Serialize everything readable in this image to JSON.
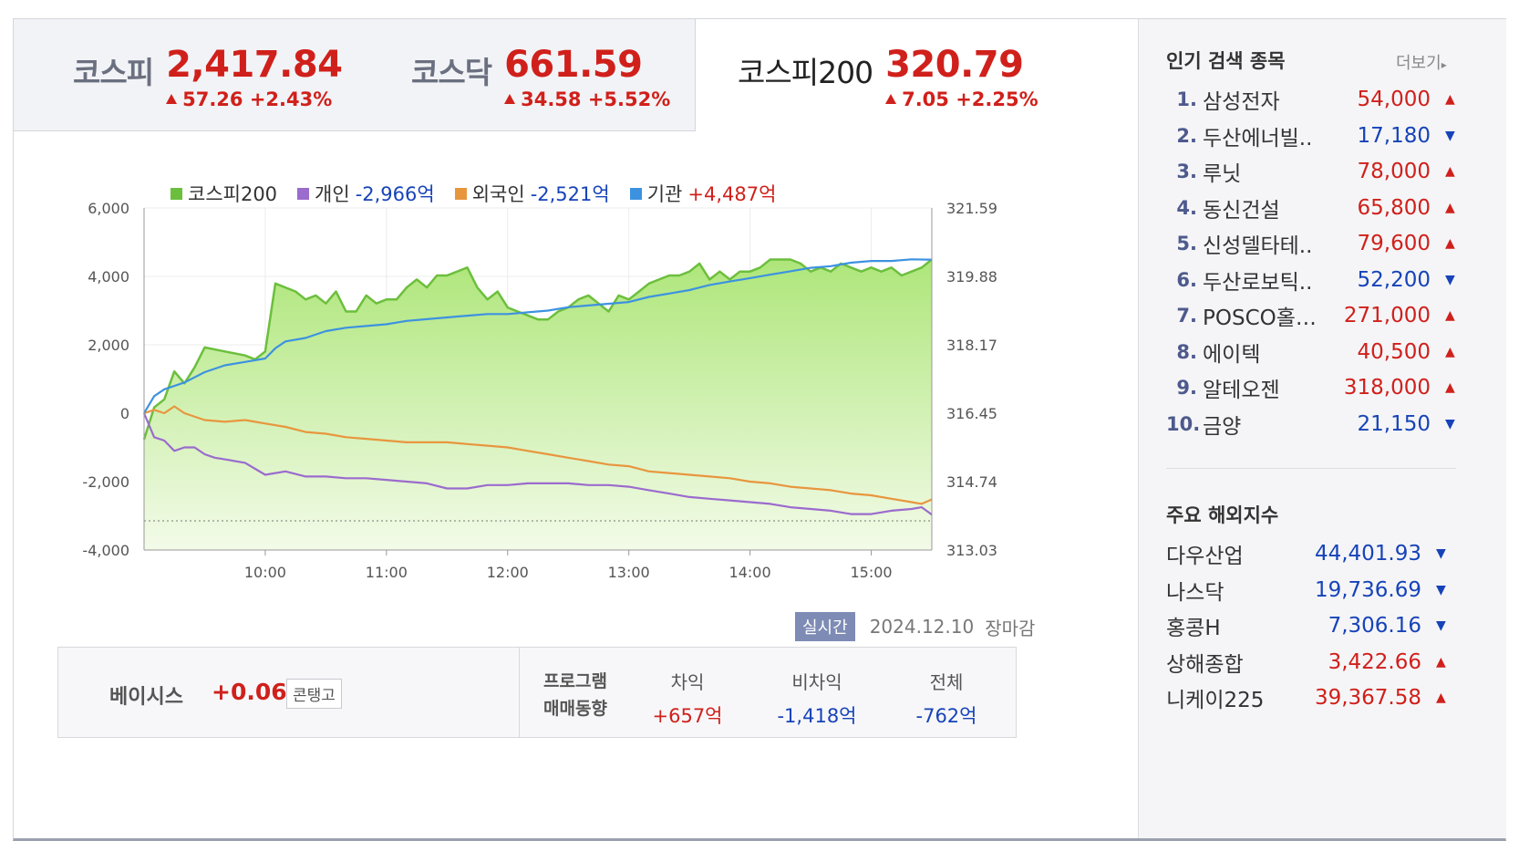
{
  "indices": [
    {
      "name": "코스피",
      "value": "2,417.84",
      "change": "57.26 +2.43%"
    },
    {
      "name": "코스닥",
      "value": "661.59",
      "change": "34.58 +5.52%"
    },
    {
      "name": "코스피200",
      "value": "320.79",
      "change": "7.05 +2.25%"
    }
  ],
  "legend": [
    {
      "name": "코스피200",
      "value": "",
      "color": "#6cbf3d"
    },
    {
      "name": "개인",
      "value": "-2,966억",
      "color": "#9b6bce",
      "sign": "neg"
    },
    {
      "name": "외국인",
      "value": "-2,521억",
      "color": "#e8963e",
      "sign": "neg"
    },
    {
      "name": "기관",
      "value": "+4,487억",
      "color": "#3d92e0",
      "sign": "pos"
    }
  ],
  "realtime": {
    "badge": "실시간",
    "date": "2024.12.10",
    "status": "장마감"
  },
  "basis": {
    "label": "베이시스",
    "value": "+0.06",
    "button": "콘탱고"
  },
  "program": {
    "label": "프로그램\n매매동향",
    "columns": [
      {
        "head": "차익",
        "value": "+657억",
        "sign": "pos"
      },
      {
        "head": "비차익",
        "value": "-1,418억",
        "sign": "neg"
      },
      {
        "head": "전체",
        "value": "-762억",
        "sign": "neg"
      }
    ]
  },
  "popular": {
    "title": "인기 검색 종목",
    "more": "더보기",
    "items": [
      {
        "rank": "1.",
        "name": "삼성전자",
        "price": "54,000",
        "dir": "up"
      },
      {
        "rank": "2.",
        "name": "두산에너빌..",
        "price": "17,180",
        "dir": "down"
      },
      {
        "rank": "3.",
        "name": "루닛",
        "price": "78,000",
        "dir": "up"
      },
      {
        "rank": "4.",
        "name": "동신건설",
        "price": "65,800",
        "dir": "up"
      },
      {
        "rank": "5.",
        "name": "신성델타테..",
        "price": "79,600",
        "dir": "up"
      },
      {
        "rank": "6.",
        "name": "두산로보틱..",
        "price": "52,200",
        "dir": "down"
      },
      {
        "rank": "7.",
        "name": "POSCO홀…",
        "price": "271,000",
        "dir": "up"
      },
      {
        "rank": "8.",
        "name": "에이텍",
        "price": "40,500",
        "dir": "up"
      },
      {
        "rank": "9.",
        "name": "알테오젠",
        "price": "318,000",
        "dir": "up"
      },
      {
        "rank": "10.",
        "name": "금양",
        "price": "21,150",
        "dir": "down"
      }
    ]
  },
  "overseas": {
    "title": "주요 해외지수",
    "items": [
      {
        "name": "다우산업",
        "value": "44,401.93",
        "dir": "down"
      },
      {
        "name": "나스닥",
        "value": "19,736.69",
        "dir": "down"
      },
      {
        "name": "홍콩H",
        "value": "7,306.16",
        "dir": "down"
      },
      {
        "name": "상해종합",
        "value": "3,422.66",
        "dir": "up"
      },
      {
        "name": "니케이225",
        "value": "39,367.58",
        "dir": "up"
      }
    ]
  },
  "colors": {
    "up": "#d0201b",
    "down": "#1643b8"
  },
  "chart_data": {
    "type": "line",
    "x_ticks": [
      "10:00",
      "11:00",
      "12:00",
      "13:00",
      "14:00",
      "15:00"
    ],
    "y_left_ticks": [
      "6,000",
      "4,000",
      "2,000",
      "0",
      "-2,000",
      "-4,000"
    ],
    "y_right_ticks": [
      "321.59",
      "319.88",
      "318.17",
      "316.45",
      "314.74",
      "313.03"
    ],
    "ylim_left": [
      -4000,
      6000
    ],
    "ylim_right": [
      313.03,
      321.59
    ],
    "x_range": [
      "09:00",
      "15:30"
    ],
    "series": [
      {
        "name": "코스피200",
        "axis": "right",
        "color": "#6cbf3d",
        "x": [
          "09:00",
          "09:05",
          "09:10",
          "09:15",
          "09:20",
          "09:25",
          "09:30",
          "09:40",
          "09:50",
          "09:55",
          "10:00",
          "10:05",
          "10:15",
          "10:20",
          "10:25",
          "10:30",
          "10:35",
          "10:40",
          "10:45",
          "10:50",
          "10:55",
          "11:00",
          "11:05",
          "11:10",
          "11:15",
          "11:20",
          "11:25",
          "11:30",
          "11:35",
          "11:40",
          "11:45",
          "11:50",
          "11:55",
          "12:00",
          "12:05",
          "12:10",
          "12:15",
          "12:20",
          "12:25",
          "12:30",
          "12:35",
          "12:40",
          "12:45",
          "12:50",
          "12:55",
          "13:00",
          "13:05",
          "13:10",
          "13:15",
          "13:20",
          "13:25",
          "13:30",
          "13:35",
          "13:40",
          "13:45",
          "13:50",
          "13:55",
          "14:00",
          "14:05",
          "14:10",
          "14:15",
          "14:20",
          "14:25",
          "14:30",
          "14:35",
          "14:40",
          "14:45",
          "14:50",
          "14:55",
          "15:00",
          "15:05",
          "15:10",
          "15:15",
          "15:20",
          "15:25",
          "15:30"
        ],
        "values": [
          315.8,
          316.6,
          316.8,
          317.5,
          317.2,
          317.6,
          318.1,
          318.0,
          317.9,
          317.8,
          318.0,
          319.7,
          319.5,
          319.3,
          319.4,
          319.2,
          319.5,
          319.0,
          319.0,
          319.4,
          319.2,
          319.3,
          319.3,
          319.6,
          319.8,
          319.6,
          319.9,
          319.9,
          320.0,
          320.1,
          319.6,
          319.3,
          319.5,
          319.1,
          319.0,
          318.9,
          318.8,
          318.8,
          319.0,
          319.1,
          319.3,
          319.4,
          319.2,
          319.0,
          319.4,
          319.3,
          319.5,
          319.7,
          319.8,
          319.9,
          319.9,
          320.0,
          320.2,
          319.8,
          320.0,
          319.8,
          320.0,
          320.0,
          320.1,
          320.3,
          320.3,
          320.3,
          320.2,
          320.0,
          320.1,
          320.0,
          320.2,
          320.1,
          320.0,
          320.1,
          320.0,
          320.1,
          319.9,
          320.0,
          320.1,
          320.3
        ]
      },
      {
        "name": "개인",
        "axis": "left",
        "color": "#9b6bce",
        "x": [
          "09:00",
          "09:05",
          "09:10",
          "09:15",
          "09:20",
          "09:25",
          "09:30",
          "09:35",
          "09:40",
          "09:50",
          "10:00",
          "10:10",
          "10:20",
          "10:30",
          "10:40",
          "10:50",
          "11:00",
          "11:10",
          "11:20",
          "11:30",
          "11:40",
          "11:50",
          "12:00",
          "12:10",
          "12:20",
          "12:30",
          "12:40",
          "12:50",
          "13:00",
          "13:10",
          "13:20",
          "13:30",
          "13:40",
          "13:50",
          "14:00",
          "14:10",
          "14:20",
          "14:30",
          "14:40",
          "14:50",
          "15:00",
          "15:10",
          "15:20",
          "15:25",
          "15:30"
        ],
        "values": [
          0,
          -700,
          -800,
          -1100,
          -1000,
          -1000,
          -1200,
          -1300,
          -1350,
          -1450,
          -1800,
          -1700,
          -1850,
          -1850,
          -1900,
          -1900,
          -1950,
          -2000,
          -2050,
          -2200,
          -2200,
          -2100,
          -2100,
          -2050,
          -2050,
          -2050,
          -2100,
          -2100,
          -2150,
          -2250,
          -2350,
          -2450,
          -2500,
          -2550,
          -2600,
          -2650,
          -2750,
          -2800,
          -2850,
          -2950,
          -2950,
          -2850,
          -2800,
          -2750,
          -2966
        ]
      },
      {
        "name": "외국인",
        "axis": "left",
        "color": "#e8963e",
        "x": [
          "09:00",
          "09:05",
          "09:10",
          "09:15",
          "09:20",
          "09:30",
          "09:40",
          "09:50",
          "10:00",
          "10:10",
          "10:20",
          "10:30",
          "10:40",
          "10:50",
          "11:00",
          "11:10",
          "11:20",
          "11:30",
          "11:40",
          "11:50",
          "12:00",
          "12:10",
          "12:20",
          "12:30",
          "12:40",
          "12:50",
          "13:00",
          "13:10",
          "13:20",
          "13:30",
          "13:40",
          "13:50",
          "14:00",
          "14:10",
          "14:20",
          "14:30",
          "14:40",
          "14:50",
          "15:00",
          "15:10",
          "15:20",
          "15:25",
          "15:30"
        ],
        "values": [
          0,
          100,
          0,
          200,
          0,
          -200,
          -250,
          -200,
          -300,
          -400,
          -550,
          -600,
          -700,
          -750,
          -800,
          -850,
          -850,
          -850,
          -900,
          -950,
          -1000,
          -1100,
          -1200,
          -1300,
          -1400,
          -1500,
          -1550,
          -1700,
          -1750,
          -1800,
          -1850,
          -1900,
          -2000,
          -2050,
          -2150,
          -2200,
          -2250,
          -2350,
          -2400,
          -2500,
          -2600,
          -2650,
          -2521
        ]
      },
      {
        "name": "기관",
        "axis": "left",
        "color": "#3d92e0",
        "x": [
          "09:00",
          "09:05",
          "09:10",
          "09:20",
          "09:30",
          "09:40",
          "09:50",
          "10:00",
          "10:05",
          "10:10",
          "10:20",
          "10:30",
          "10:40",
          "10:50",
          "11:00",
          "11:10",
          "11:20",
          "11:30",
          "11:40",
          "11:50",
          "12:00",
          "12:10",
          "12:20",
          "12:30",
          "12:40",
          "12:50",
          "13:00",
          "13:10",
          "13:20",
          "13:30",
          "13:40",
          "13:50",
          "14:00",
          "14:10",
          "14:20",
          "14:30",
          "14:40",
          "14:50",
          "15:00",
          "15:10",
          "15:20",
          "15:30"
        ],
        "values": [
          0,
          500,
          700,
          900,
          1200,
          1400,
          1500,
          1600,
          1900,
          2100,
          2200,
          2400,
          2500,
          2550,
          2600,
          2700,
          2750,
          2800,
          2850,
          2900,
          2900,
          2950,
          3000,
          3100,
          3150,
          3200,
          3250,
          3400,
          3500,
          3600,
          3750,
          3850,
          3950,
          4050,
          4150,
          4250,
          4300,
          4400,
          4450,
          4450,
          4500,
          4487
        ]
      }
    ]
  }
}
